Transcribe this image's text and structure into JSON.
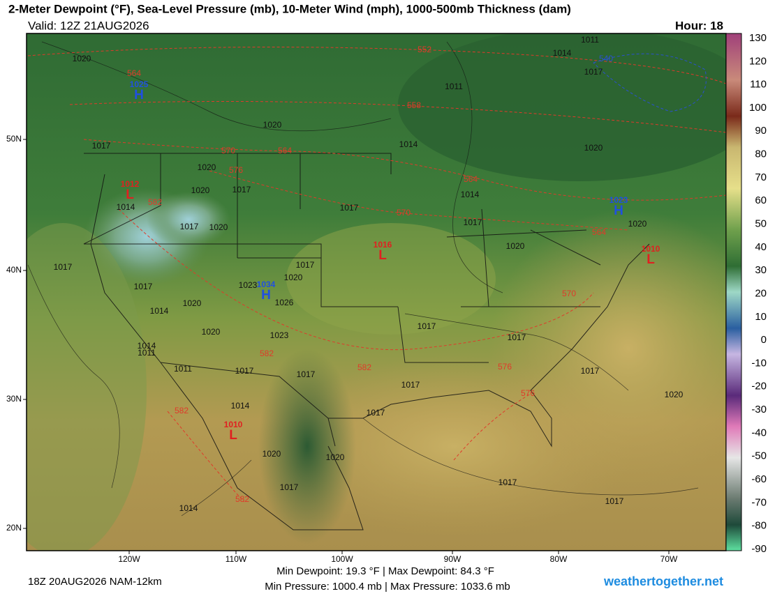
{
  "header": {
    "title": "2-Meter Dewpoint (°F), Sea-Level Pressure (mb), 10-Meter Wind (mph), 1000-500mb Thickness (dam)",
    "valid": "Valid: 12Z 21AUG2026",
    "hour": "Hour: 18"
  },
  "map": {
    "lat_labels": [
      "50N",
      "40N",
      "30N",
      "20N"
    ],
    "lon_labels": [
      "120W",
      "110W",
      "100W",
      "90W",
      "80W",
      "70W"
    ],
    "isobar_labels": [
      "1020",
      "1011",
      "1014",
      "1011",
      "1017",
      "1020",
      "1020",
      "1017",
      "1020",
      "1020",
      "1017",
      "1014",
      "1017",
      "1020",
      "1017",
      "1014",
      "1017",
      "1020",
      "1020",
      "1017",
      "1017",
      "1020",
      "1023",
      "1026",
      "1017",
      "1020",
      "1014",
      "1020",
      "1023",
      "1011",
      "1014",
      "1011",
      "1017",
      "1017",
      "1017",
      "1017",
      "1017",
      "1017",
      "1017",
      "1020",
      "1014",
      "1020",
      "1020",
      "1017",
      "1017",
      "1017",
      "1014",
      "1014"
    ],
    "thickness_labels": [
      "552",
      "558",
      "564",
      "570",
      "564",
      "576",
      "582",
      "564",
      "570",
      "564",
      "570",
      "576",
      "576",
      "582",
      "582",
      "582",
      "582",
      "540"
    ],
    "highs": [
      {
        "pressure": "1025",
        "symbol": "H"
      },
      {
        "pressure": "1034",
        "symbol": "H"
      },
      {
        "pressure": "1023",
        "symbol": "H"
      }
    ],
    "lows": [
      {
        "pressure": "1012",
        "symbol": "L"
      },
      {
        "pressure": "1016",
        "symbol": "L"
      },
      {
        "pressure": "1010",
        "symbol": "L"
      },
      {
        "pressure": "1010",
        "symbol": "L"
      }
    ]
  },
  "colorbar": {
    "labels": [
      "130",
      "120",
      "110",
      "100",
      "90",
      "80",
      "70",
      "60",
      "50",
      "40",
      "30",
      "20",
      "10",
      "0",
      "-10",
      "-20",
      "-30",
      "-40",
      "-50",
      "-60",
      "-70",
      "-80",
      "-90"
    ]
  },
  "footer": {
    "run": "18Z 20AUG2026 NAM-12km",
    "dewpoint": "Min Dewpoint:  19.3 °F | Max Dewpoint:  84.3 °F",
    "pressure": "Min Pressure: 1000.4 mb | Max Pressure: 1033.6 mb",
    "site": "weathertogether.net"
  }
}
